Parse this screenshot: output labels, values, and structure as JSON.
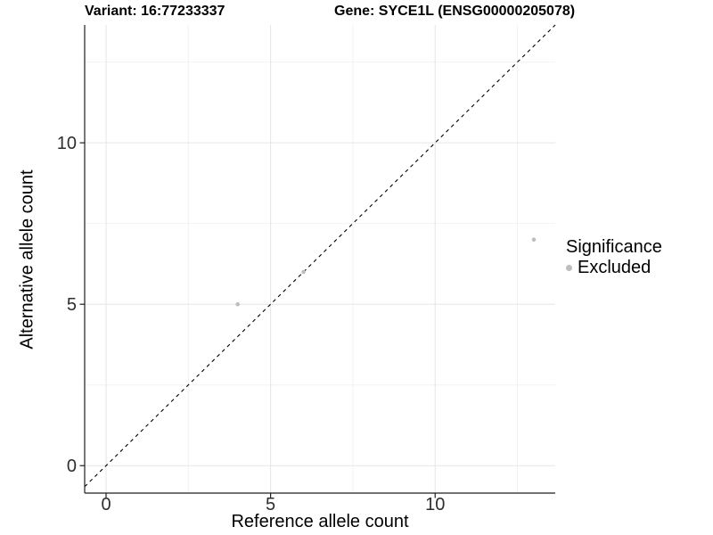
{
  "chart_data": {
    "type": "scatter",
    "titles": {
      "variant": "Variant: 16:77233337",
      "gene": "Gene: SYCE1L (ENSG00000205078)"
    },
    "xlabel": "Reference allele count",
    "ylabel": "Alternative allele count",
    "xlim": [
      -0.65,
      13.65
    ],
    "ylim": [
      -0.85,
      13.65
    ],
    "x_ticks": {
      "major": [
        0,
        5,
        10
      ],
      "minor": [
        2.5,
        7.5,
        12.5
      ]
    },
    "y_ticks": {
      "major": [
        0,
        5,
        10
      ],
      "minor": [
        2.5,
        7.5,
        12.5
      ]
    },
    "grid": "major+minor",
    "reference_line": {
      "type": "identity y=x",
      "style": "dashed",
      "color": "#000000"
    },
    "legend": {
      "title": "Significance",
      "position": "right",
      "items": [
        {
          "label": "Excluded",
          "color": "#bebebe"
        }
      ]
    },
    "series": [
      {
        "name": "Excluded",
        "color": "#bebebe",
        "marker": "circle",
        "points": [
          [
            4,
            5
          ],
          [
            6,
            6
          ],
          [
            13,
            7
          ]
        ]
      }
    ]
  },
  "colors": {
    "background": "#ffffff",
    "grid_major": "#e6e6e6",
    "grid_minor": "#f2f2f2",
    "axis_line": "#1f1f1f",
    "tick_label": "#2e2e2e",
    "point": "#bebebe",
    "reference_line": "#000000"
  }
}
